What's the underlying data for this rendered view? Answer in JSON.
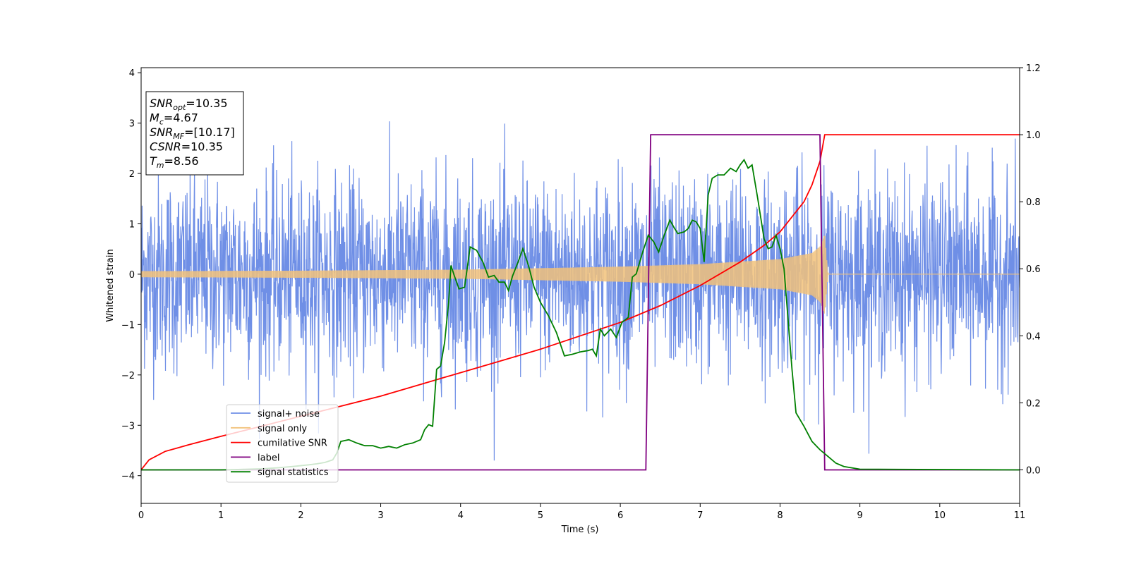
{
  "chart_data": {
    "type": "line",
    "xlabel": "Time (s)",
    "ylabel": "Whitened strain",
    "xlim": [
      0,
      11
    ],
    "ylim": [
      -4.55,
      4.1
    ],
    "y2lim": [
      -0.1,
      1.2
    ],
    "x_ticks": [
      0,
      1,
      2,
      3,
      4,
      5,
      6,
      7,
      8,
      9,
      10,
      11
    ],
    "y_ticks": [
      -4,
      -3,
      -2,
      -1,
      0,
      1,
      2,
      3,
      4
    ],
    "y2_ticks": [
      0.0,
      0.2,
      0.4,
      0.6,
      0.8,
      1.0,
      1.2
    ],
    "x_tick_labels": [
      "0",
      "1",
      "2",
      "3",
      "4",
      "5",
      "6",
      "7",
      "8",
      "9",
      "10",
      "11"
    ],
    "y_tick_labels": [
      "−4",
      "−3",
      "−2",
      "−1",
      "0",
      "1",
      "2",
      "3",
      "4"
    ],
    "y2_tick_labels": [
      "0.0",
      "0.2",
      "0.4",
      "0.6",
      "0.8",
      "1.0",
      "1.2"
    ],
    "legend_position": "lower-left",
    "series": [
      {
        "name": "signal+ noise",
        "color": "#6f8fe6",
        "axis": "left",
        "kind": "noise",
        "sigma": 0.95,
        "max_abs": 3.7,
        "t_range": [
          0,
          11
        ]
      },
      {
        "name": "signal only",
        "color": "#f2c27a",
        "axis": "left",
        "kind": "chirp",
        "t_range": [
          0,
          11
        ],
        "merger_time": 8.56,
        "amplitude_envelope": [
          [
            0,
            0.06
          ],
          [
            2,
            0.07
          ],
          [
            4,
            0.09
          ],
          [
            6,
            0.15
          ],
          [
            7,
            0.2
          ],
          [
            8,
            0.3
          ],
          [
            8.4,
            0.42
          ],
          [
            8.5,
            0.55
          ],
          [
            8.56,
            0.8
          ],
          [
            8.6,
            0.0
          ],
          [
            11,
            0.0
          ]
        ]
      },
      {
        "name": "cumilative SNR",
        "color": "#ff0000",
        "axis": "right",
        "points": [
          [
            0,
            0.0
          ],
          [
            0.1,
            0.03
          ],
          [
            0.3,
            0.055
          ],
          [
            0.6,
            0.075
          ],
          [
            1.0,
            0.1
          ],
          [
            1.5,
            0.13
          ],
          [
            2.0,
            0.16
          ],
          [
            2.5,
            0.19
          ],
          [
            3.0,
            0.22
          ],
          [
            3.5,
            0.255
          ],
          [
            4.0,
            0.29
          ],
          [
            4.5,
            0.325
          ],
          [
            5.0,
            0.36
          ],
          [
            5.5,
            0.4
          ],
          [
            6.0,
            0.44
          ],
          [
            6.5,
            0.49
          ],
          [
            7.0,
            0.55
          ],
          [
            7.5,
            0.62
          ],
          [
            7.8,
            0.67
          ],
          [
            8.0,
            0.71
          ],
          [
            8.2,
            0.77
          ],
          [
            8.3,
            0.8
          ],
          [
            8.4,
            0.85
          ],
          [
            8.5,
            0.92
          ],
          [
            8.56,
            1.0
          ],
          [
            11,
            1.0
          ]
        ]
      },
      {
        "name": "label",
        "color": "#800080",
        "axis": "right",
        "points": [
          [
            0,
            0.0
          ],
          [
            6.32,
            0.0
          ],
          [
            6.38,
            1.0
          ],
          [
            8.5,
            1.0
          ],
          [
            8.56,
            0.0
          ],
          [
            11,
            0.0
          ]
        ]
      },
      {
        "name": "signal statistics",
        "color": "#008000",
        "axis": "right",
        "points": [
          [
            0,
            0.0
          ],
          [
            1.0,
            0.0
          ],
          [
            1.5,
            0.003
          ],
          [
            1.7,
            0.006
          ],
          [
            1.9,
            0.01
          ],
          [
            2.1,
            0.015
          ],
          [
            2.2,
            0.018
          ],
          [
            2.3,
            0.022
          ],
          [
            2.4,
            0.03
          ],
          [
            2.45,
            0.05
          ],
          [
            2.5,
            0.085
          ],
          [
            2.6,
            0.09
          ],
          [
            2.7,
            0.08
          ],
          [
            2.8,
            0.072
          ],
          [
            2.9,
            0.072
          ],
          [
            3.0,
            0.065
          ],
          [
            3.1,
            0.07
          ],
          [
            3.2,
            0.065
          ],
          [
            3.3,
            0.075
          ],
          [
            3.4,
            0.08
          ],
          [
            3.5,
            0.09
          ],
          [
            3.55,
            0.12
          ],
          [
            3.6,
            0.135
          ],
          [
            3.65,
            0.13
          ],
          [
            3.7,
            0.3
          ],
          [
            3.75,
            0.31
          ],
          [
            3.8,
            0.38
          ],
          [
            3.85,
            0.5
          ],
          [
            3.88,
            0.61
          ],
          [
            3.92,
            0.58
          ],
          [
            3.98,
            0.54
          ],
          [
            4.05,
            0.545
          ],
          [
            4.12,
            0.665
          ],
          [
            4.2,
            0.655
          ],
          [
            4.28,
            0.62
          ],
          [
            4.35,
            0.575
          ],
          [
            4.42,
            0.58
          ],
          [
            4.48,
            0.56
          ],
          [
            4.55,
            0.56
          ],
          [
            4.6,
            0.535
          ],
          [
            4.65,
            0.578
          ],
          [
            4.72,
            0.62
          ],
          [
            4.78,
            0.66
          ],
          [
            4.85,
            0.61
          ],
          [
            4.92,
            0.545
          ],
          [
            5.0,
            0.5
          ],
          [
            5.1,
            0.46
          ],
          [
            5.2,
            0.41
          ],
          [
            5.3,
            0.34
          ],
          [
            5.4,
            0.345
          ],
          [
            5.5,
            0.352
          ],
          [
            5.6,
            0.356
          ],
          [
            5.65,
            0.36
          ],
          [
            5.7,
            0.34
          ],
          [
            5.75,
            0.42
          ],
          [
            5.8,
            0.4
          ],
          [
            5.88,
            0.42
          ],
          [
            5.95,
            0.395
          ],
          [
            6.02,
            0.44
          ],
          [
            6.1,
            0.455
          ],
          [
            6.15,
            0.575
          ],
          [
            6.2,
            0.585
          ],
          [
            6.28,
            0.65
          ],
          [
            6.35,
            0.7
          ],
          [
            6.42,
            0.68
          ],
          [
            6.48,
            0.65
          ],
          [
            6.55,
            0.7
          ],
          [
            6.62,
            0.745
          ],
          [
            6.68,
            0.72
          ],
          [
            6.72,
            0.705
          ],
          [
            6.8,
            0.71
          ],
          [
            6.85,
            0.72
          ],
          [
            6.9,
            0.745
          ],
          [
            6.95,
            0.74
          ],
          [
            7.0,
            0.72
          ],
          [
            7.05,
            0.62
          ],
          [
            7.1,
            0.82
          ],
          [
            7.15,
            0.87
          ],
          [
            7.22,
            0.88
          ],
          [
            7.3,
            0.88
          ],
          [
            7.38,
            0.9
          ],
          [
            7.45,
            0.89
          ],
          [
            7.5,
            0.91
          ],
          [
            7.55,
            0.925
          ],
          [
            7.6,
            0.9
          ],
          [
            7.65,
            0.91
          ],
          [
            7.72,
            0.81
          ],
          [
            7.8,
            0.69
          ],
          [
            7.85,
            0.66
          ],
          [
            7.9,
            0.665
          ],
          [
            7.95,
            0.7
          ],
          [
            8.0,
            0.66
          ],
          [
            8.05,
            0.6
          ],
          [
            8.1,
            0.45
          ],
          [
            8.15,
            0.3
          ],
          [
            8.2,
            0.17
          ],
          [
            8.3,
            0.13
          ],
          [
            8.4,
            0.085
          ],
          [
            8.5,
            0.06
          ],
          [
            8.6,
            0.04
          ],
          [
            8.7,
            0.02
          ],
          [
            8.8,
            0.01
          ],
          [
            9.0,
            0.002
          ],
          [
            11,
            0.0
          ]
        ]
      }
    ],
    "stats_box": [
      {
        "main": "SNR",
        "sub": "opt",
        "rest": "=10.35"
      },
      {
        "main": "M",
        "sub": "c",
        "rest": "=4.67"
      },
      {
        "main": "SNR",
        "sub": "MF",
        "rest": "=[10.17]"
      },
      {
        "main": "CSNR",
        "sub": "",
        "rest": "=10.35"
      },
      {
        "main": "T",
        "sub": "m",
        "rest": "=8.56"
      }
    ]
  }
}
